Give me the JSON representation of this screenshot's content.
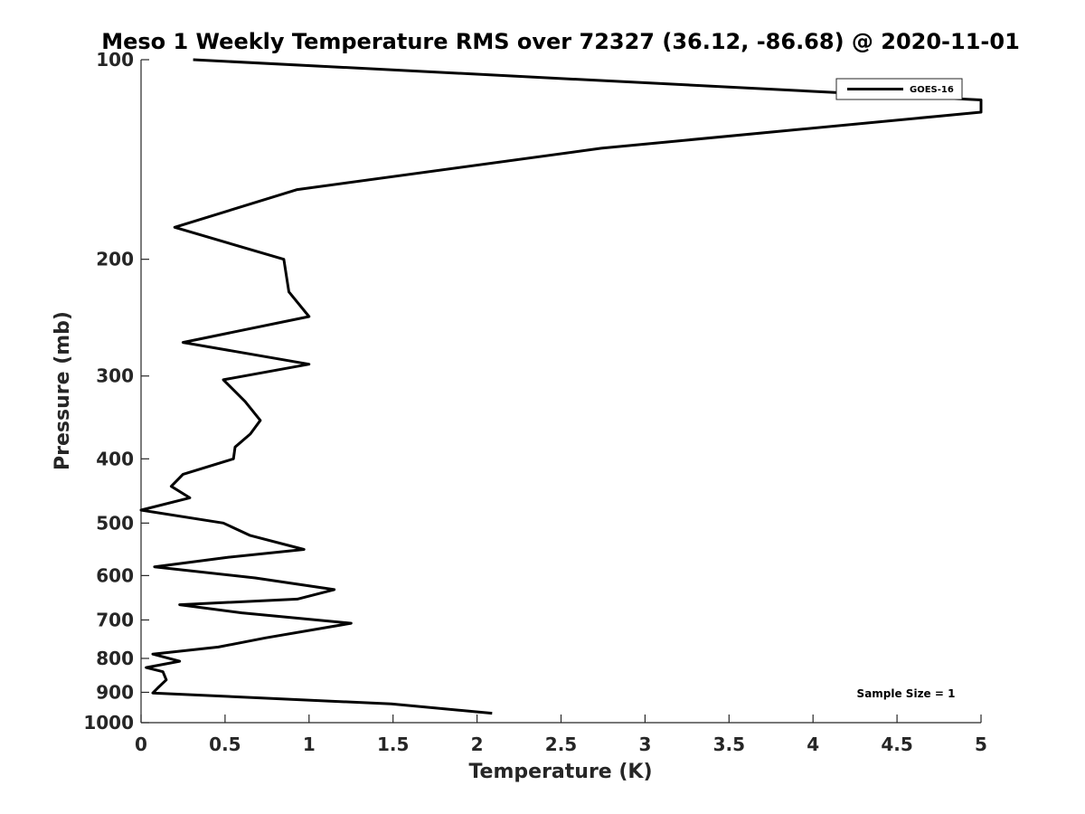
{
  "chart_data": {
    "type": "line",
    "title": "Meso 1 Weekly Temperature RMS over 72327 (36.12, -86.68) @ 2020-11-01",
    "xlabel": "Temperature (K)",
    "ylabel": "Pressure (mb)",
    "xlim": [
      0,
      5
    ],
    "ylim": [
      100,
      1000
    ],
    "y_scale": "log",
    "y_reversed": true,
    "x_ticks": [
      "0",
      "0.5",
      "1",
      "1.5",
      "2",
      "2.5",
      "3",
      "3.5",
      "4",
      "4.5",
      "5"
    ],
    "y_ticks": [
      "100",
      "200",
      "300",
      "400",
      "500",
      "600",
      "700",
      "800",
      "900",
      "1000"
    ],
    "grid": false,
    "legend_position": "top-right",
    "annotation": "Sample Size = 1",
    "series": [
      {
        "name": "GOES-16",
        "color": "#000000",
        "points": [
          [
            0.31,
            100
          ],
          [
            5.0,
            115
          ],
          [
            5.0,
            120
          ],
          [
            2.74,
            136
          ],
          [
            0.93,
            157
          ],
          [
            0.2,
            179
          ],
          [
            0.85,
            200
          ],
          [
            0.88,
            224
          ],
          [
            1.0,
            244
          ],
          [
            0.25,
            267
          ],
          [
            1.0,
            288
          ],
          [
            0.49,
            304
          ],
          [
            0.62,
            328
          ],
          [
            0.71,
            350
          ],
          [
            0.65,
            367
          ],
          [
            0.56,
            384
          ],
          [
            0.55,
            400
          ],
          [
            0.25,
            422
          ],
          [
            0.18,
            440
          ],
          [
            0.29,
            458
          ],
          [
            0.0,
            478
          ],
          [
            0.49,
            500
          ],
          [
            0.65,
            522
          ],
          [
            0.97,
            548
          ],
          [
            0.52,
            563
          ],
          [
            0.08,
            582
          ],
          [
            0.68,
            605
          ],
          [
            1.15,
            630
          ],
          [
            0.93,
            651
          ],
          [
            0.23,
            664
          ],
          [
            0.6,
            683
          ],
          [
            1.25,
            708
          ],
          [
            0.74,
            745
          ],
          [
            0.46,
            769
          ],
          [
            0.07,
            788
          ],
          [
            0.23,
            808
          ],
          [
            0.03,
            826
          ],
          [
            0.13,
            838
          ],
          [
            0.15,
            862
          ],
          [
            0.1,
            886
          ],
          [
            0.07,
            902
          ],
          [
            1.49,
            937
          ],
          [
            2.09,
            968
          ]
        ]
      }
    ]
  }
}
